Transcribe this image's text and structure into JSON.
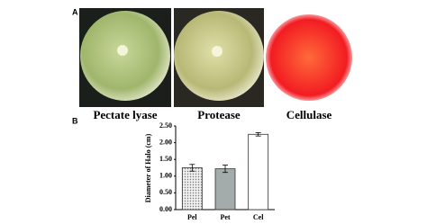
{
  "panels": {
    "a_label": "A",
    "b_label": "B",
    "captions": [
      "Pectate lyase",
      "Protease",
      "Cellulase"
    ]
  },
  "chart_data": {
    "type": "bar",
    "y_label": "Diameter of Halo (cm)",
    "categories": [
      "Pel",
      "Pet",
      "Cel"
    ],
    "values": [
      1.25,
      1.22,
      2.25
    ],
    "errors": [
      0.1,
      0.11,
      0.05
    ],
    "colors": [
      "#d8d8d8",
      "#a3abab",
      "#ffffff"
    ],
    "hatch": [
      true,
      false,
      false
    ],
    "ylim": [
      0,
      2.5
    ],
    "yticks": [
      {
        "value": 0,
        "label": "0.00"
      },
      {
        "value": 0.5,
        "label": "0.50"
      },
      {
        "value": 1,
        "label": "1.00"
      },
      {
        "value": 1.5,
        "label": "1.50"
      },
      {
        "value": 2,
        "label": "2.00"
      },
      {
        "value": 2.5,
        "label": "2.50"
      }
    ]
  }
}
